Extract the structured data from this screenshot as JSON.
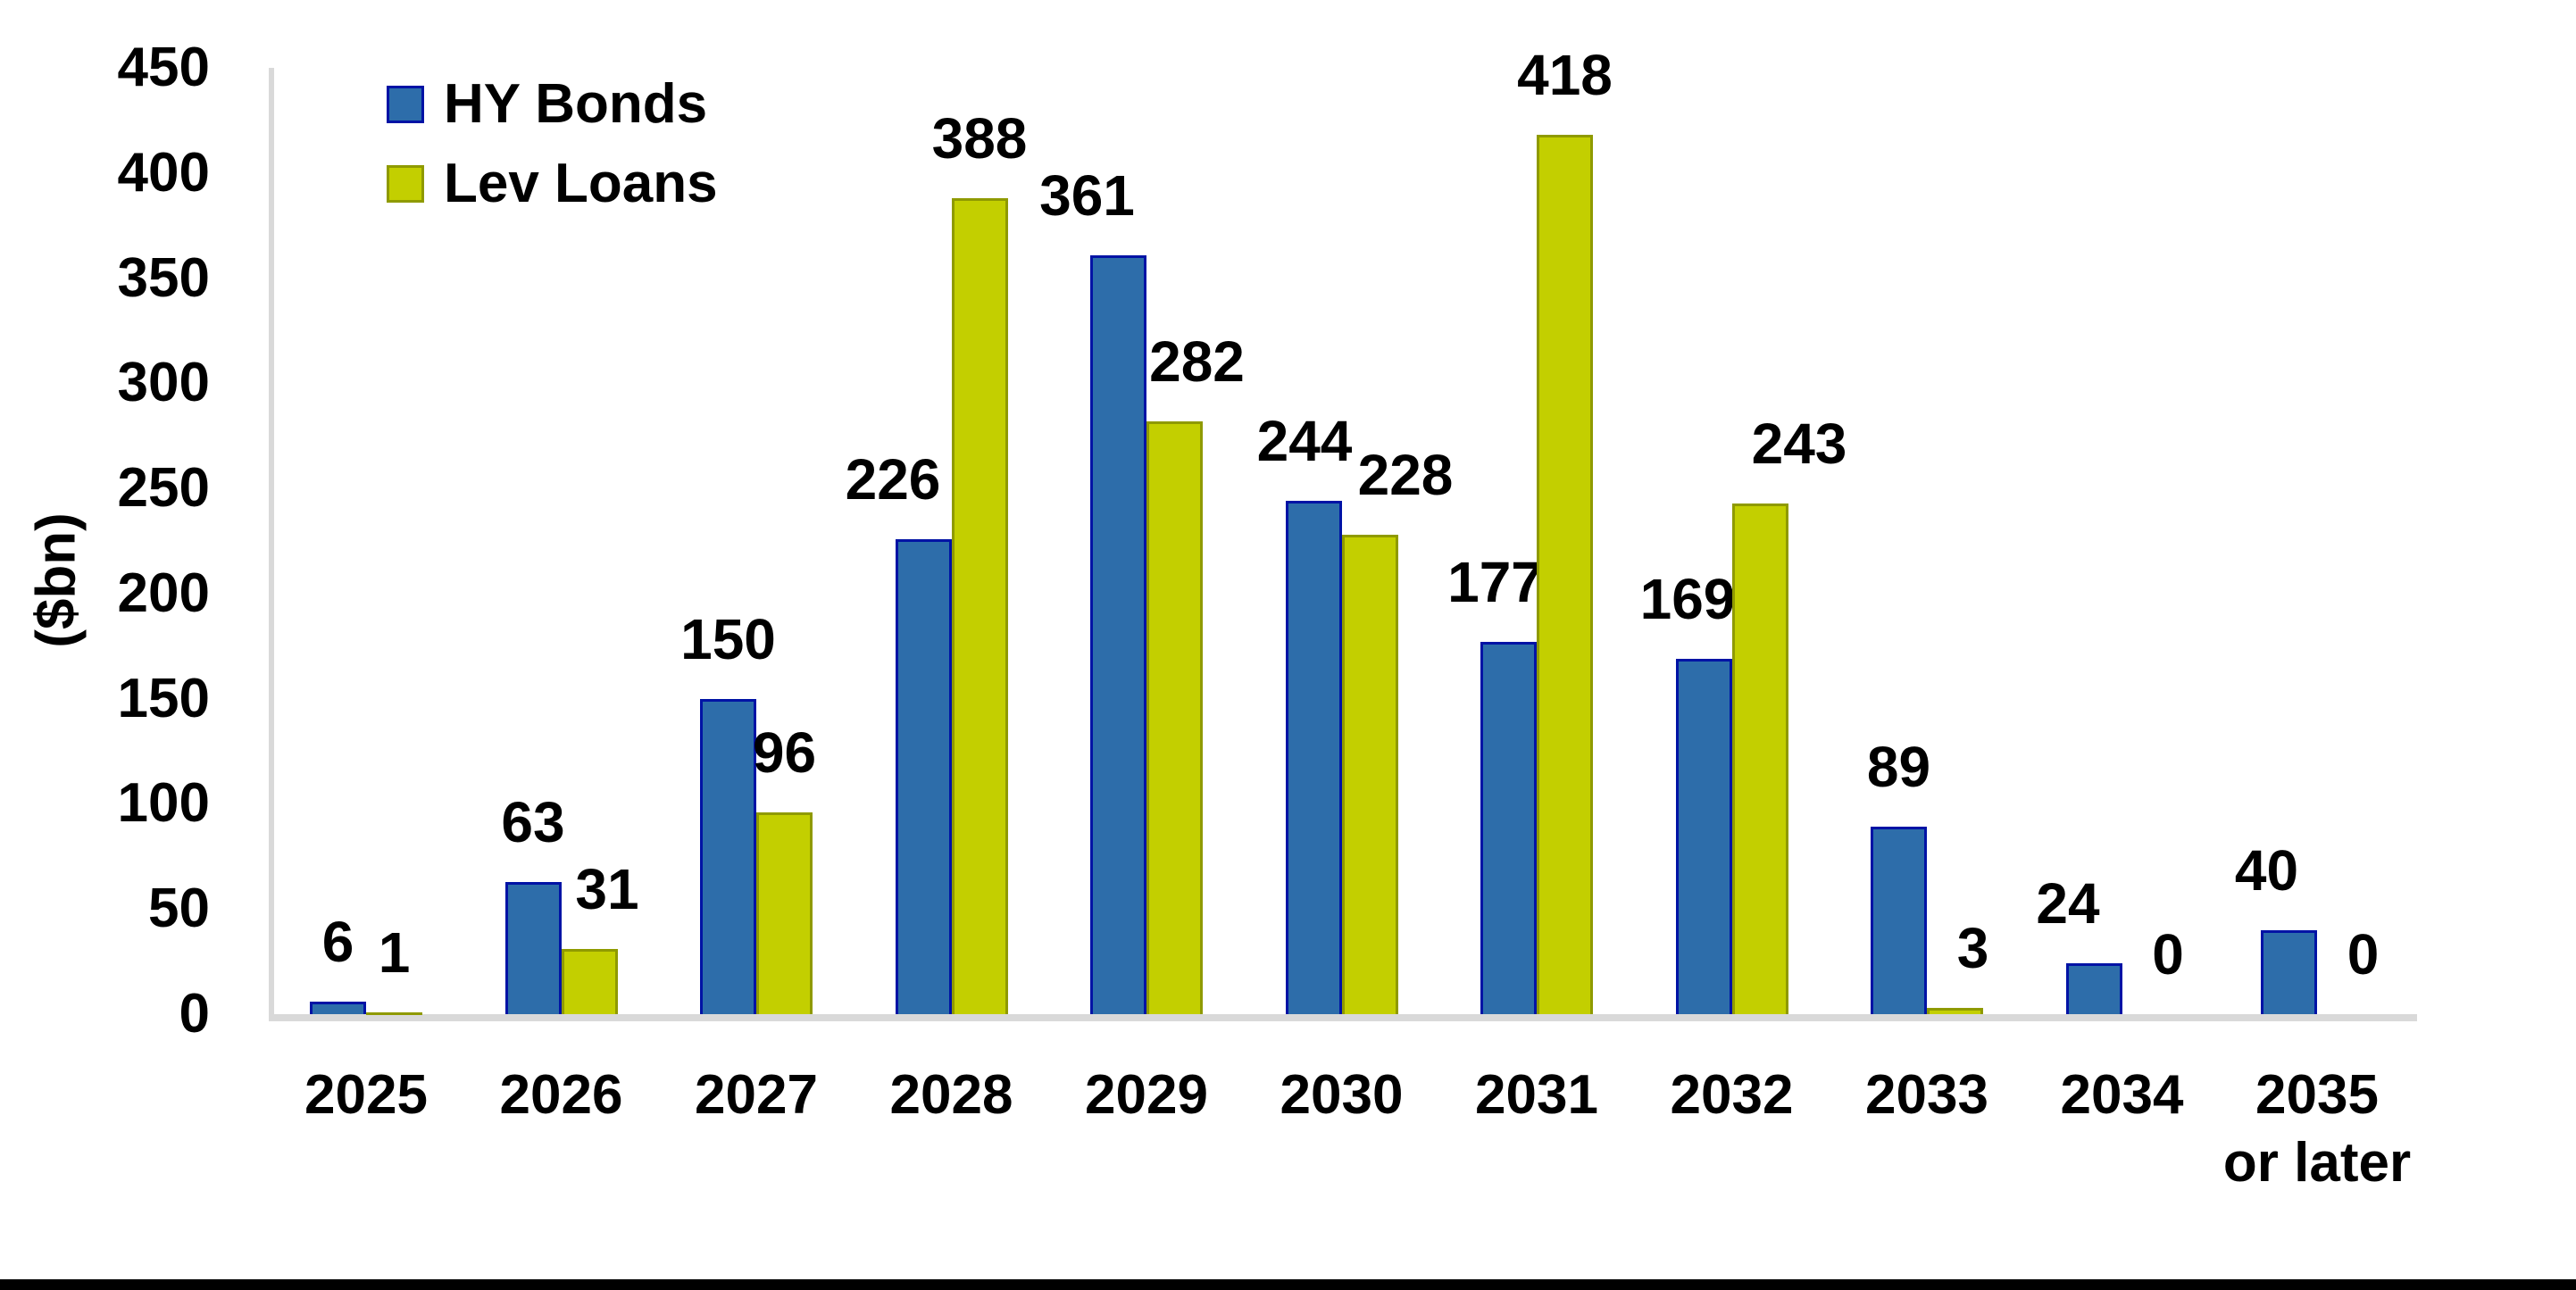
{
  "chart_data": {
    "type": "bar",
    "title": "",
    "ylabel": "($bn)",
    "xlabel": "",
    "ylim": [
      0,
      450
    ],
    "yticks": [
      0,
      50,
      100,
      150,
      200,
      250,
      300,
      350,
      400,
      450
    ],
    "grid": false,
    "legend_position": "top-left-inside",
    "categories": [
      "2025",
      "2026",
      "2027",
      "2028",
      "2029",
      "2030",
      "2031",
      "2032",
      "2033",
      "2034",
      "2035"
    ],
    "category_sublabels": [
      "",
      "",
      "",
      "",
      "",
      "",
      "",
      "",
      "",
      "",
      "or later"
    ],
    "series": [
      {
        "name": "HY Bonds",
        "color": "#2D6DAA",
        "border_color": "#0013A5",
        "values": [
          6,
          63,
          150,
          226,
          361,
          244,
          177,
          169,
          89,
          24,
          40
        ],
        "label_dx": [
          0,
          0,
          0,
          -34,
          -35,
          -10,
          -15,
          -18,
          0,
          -29,
          -25
        ]
      },
      {
        "name": "Lev Loans",
        "color": "#C3CF00",
        "border_color": "#8F9A00",
        "values": [
          1,
          31,
          96,
          388,
          282,
          228,
          418,
          243,
          3,
          0,
          0
        ],
        "label_dx": [
          0,
          20,
          0,
          0,
          25,
          40,
          0,
          44,
          20,
          20,
          20
        ]
      }
    ],
    "colors": {
      "axis_line": "#D9D9D9",
      "text": "#000000",
      "background": "#FFFFFF",
      "bottom_rule": "#000000"
    }
  }
}
